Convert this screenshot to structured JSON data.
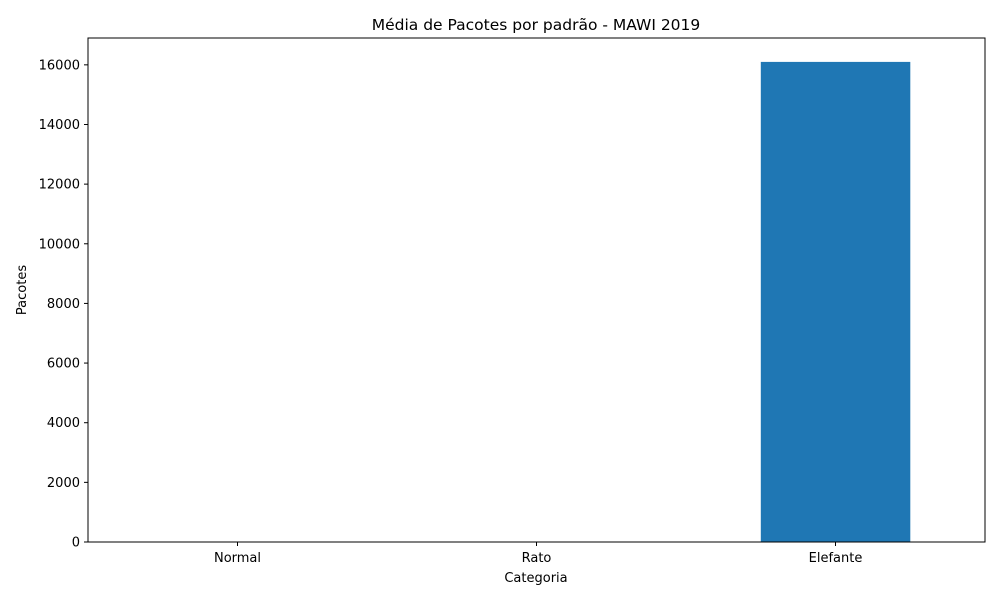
{
  "chart_data": {
    "type": "bar",
    "title": "Média de Pacotes por padrão - MAWI 2019",
    "xlabel": "Categoria",
    "ylabel": "Pacotes",
    "categories": [
      "Normal",
      "Rato",
      "Elefante"
    ],
    "values": [
      5,
      2,
      16100
    ],
    "ylim": [
      0,
      16900
    ],
    "yticks": [
      0,
      2000,
      4000,
      6000,
      8000,
      10000,
      12000,
      14000,
      16000
    ],
    "bar_color": "#1f77b4",
    "grid": false,
    "legend": "none"
  }
}
